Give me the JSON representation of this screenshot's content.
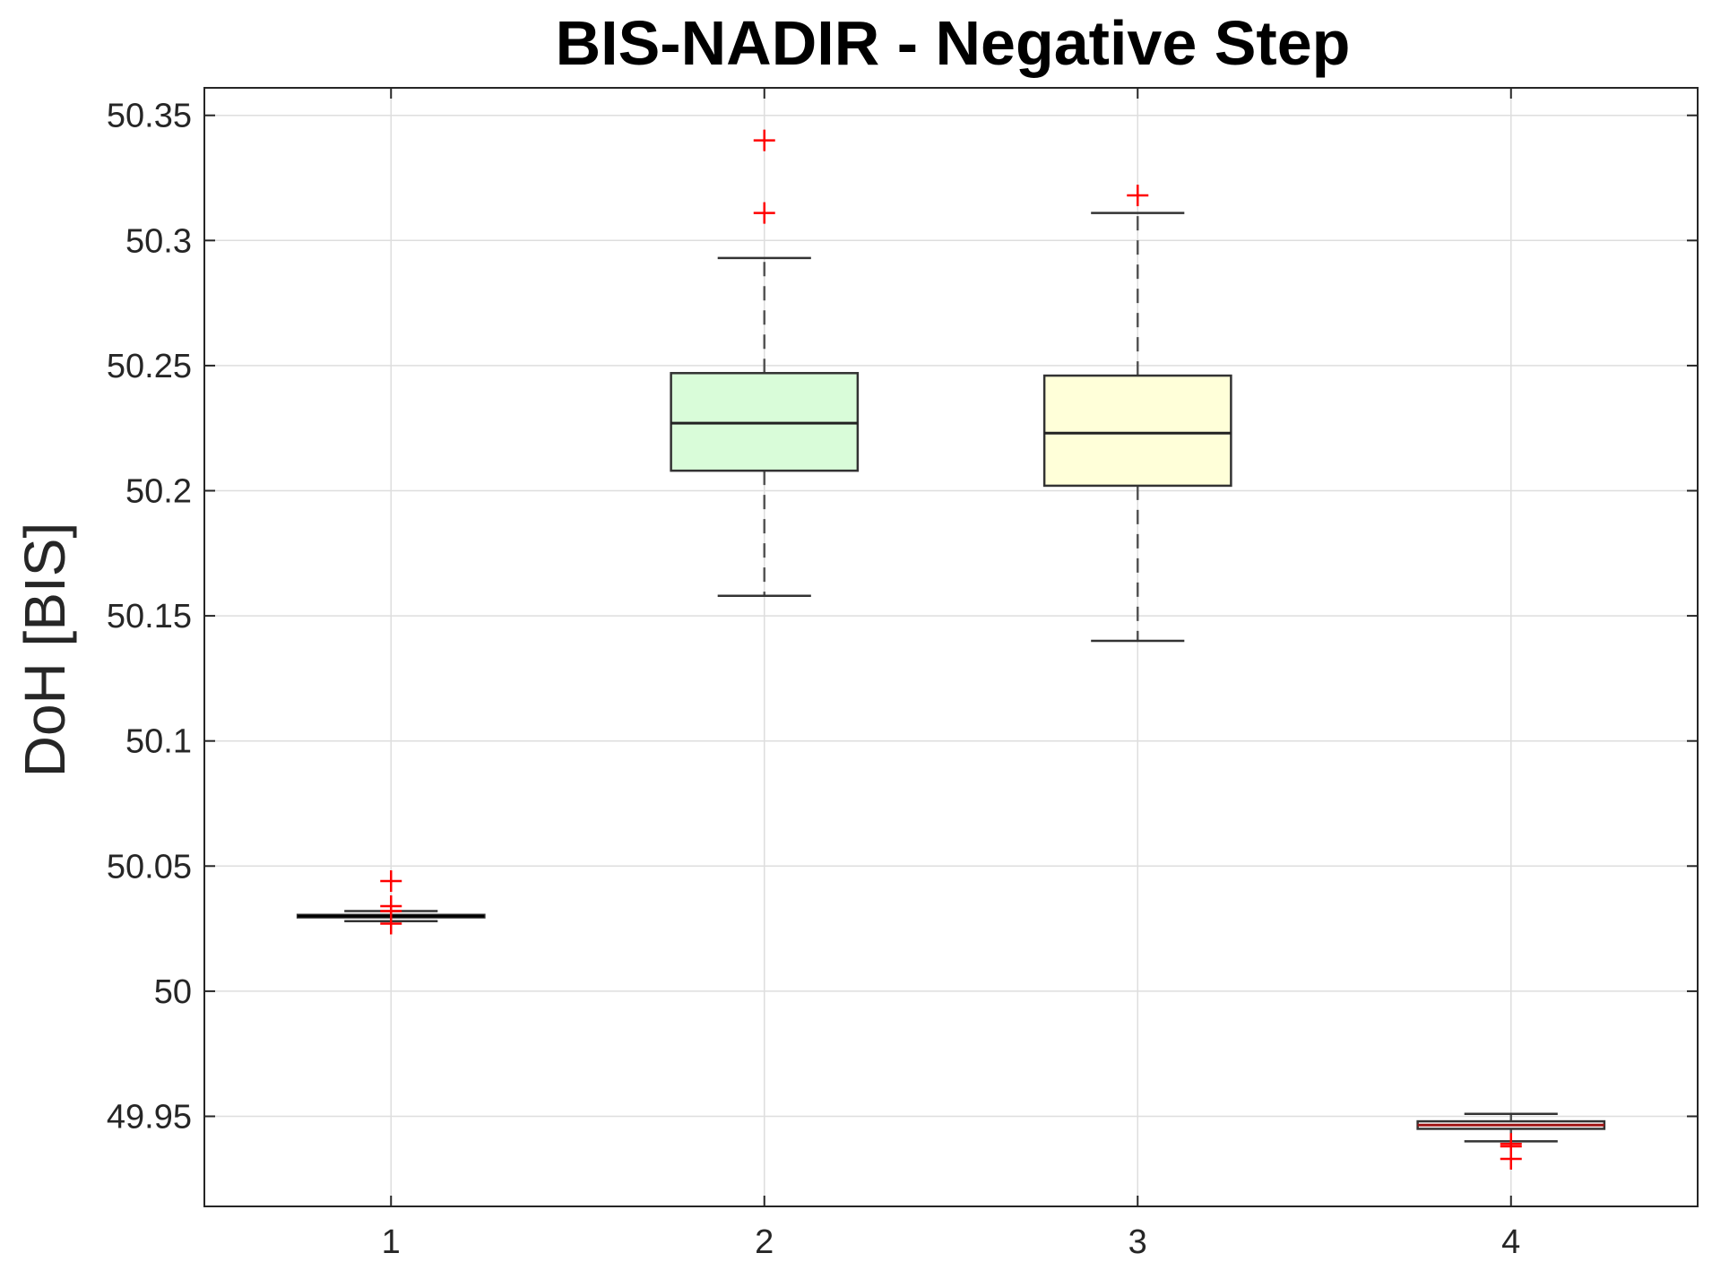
{
  "chart_data": {
    "type": "box",
    "title": "BIS-NADIR - Negative Step",
    "xlabel": "",
    "ylabel": "DoH [BIS]",
    "categories": [
      "1",
      "2",
      "3",
      "4"
    ],
    "xlim": [
      0.5,
      4.5
    ],
    "ylim": [
      49.914,
      50.361
    ],
    "yticks": [
      49.95,
      50,
      50.05,
      50.1,
      50.15,
      50.2,
      50.25,
      50.3,
      50.35
    ],
    "ytick_labels": [
      "49.95",
      "50",
      "50.05",
      "50.1",
      "50.15",
      "50.2",
      "50.25",
      "50.3",
      "50.35"
    ],
    "grid": true,
    "boxes": [
      {
        "category": "1",
        "whisker_low": 50.028,
        "q1": 50.0295,
        "median": 50.03,
        "q3": 50.0305,
        "whisker_high": 50.032,
        "outliers": [
          50.044,
          50.034,
          50.032,
          50.027
        ],
        "fill": "#ffffff",
        "median_color": "#000000"
      },
      {
        "category": "2",
        "whisker_low": 50.158,
        "q1": 50.208,
        "median": 50.227,
        "q3": 50.247,
        "whisker_high": 50.293,
        "outliers": [
          50.311,
          50.34
        ],
        "fill": "#d9fcd9",
        "median_color": "#222222"
      },
      {
        "category": "3",
        "whisker_low": 50.14,
        "q1": 50.202,
        "median": 50.223,
        "q3": 50.246,
        "whisker_high": 50.311,
        "outliers": [
          50.318
        ],
        "fill": "#ffffd9",
        "median_color": "#222222"
      },
      {
        "category": "4",
        "whisker_low": 49.94,
        "q1": 49.945,
        "median": 49.9465,
        "q3": 49.948,
        "whisker_high": 49.951,
        "outliers": [
          49.939,
          49.938,
          49.933
        ],
        "fill": "#ffffff",
        "median_color": "#a01515"
      }
    ],
    "outlier_color": "#ff0000",
    "box_edge_color": "#333333"
  }
}
